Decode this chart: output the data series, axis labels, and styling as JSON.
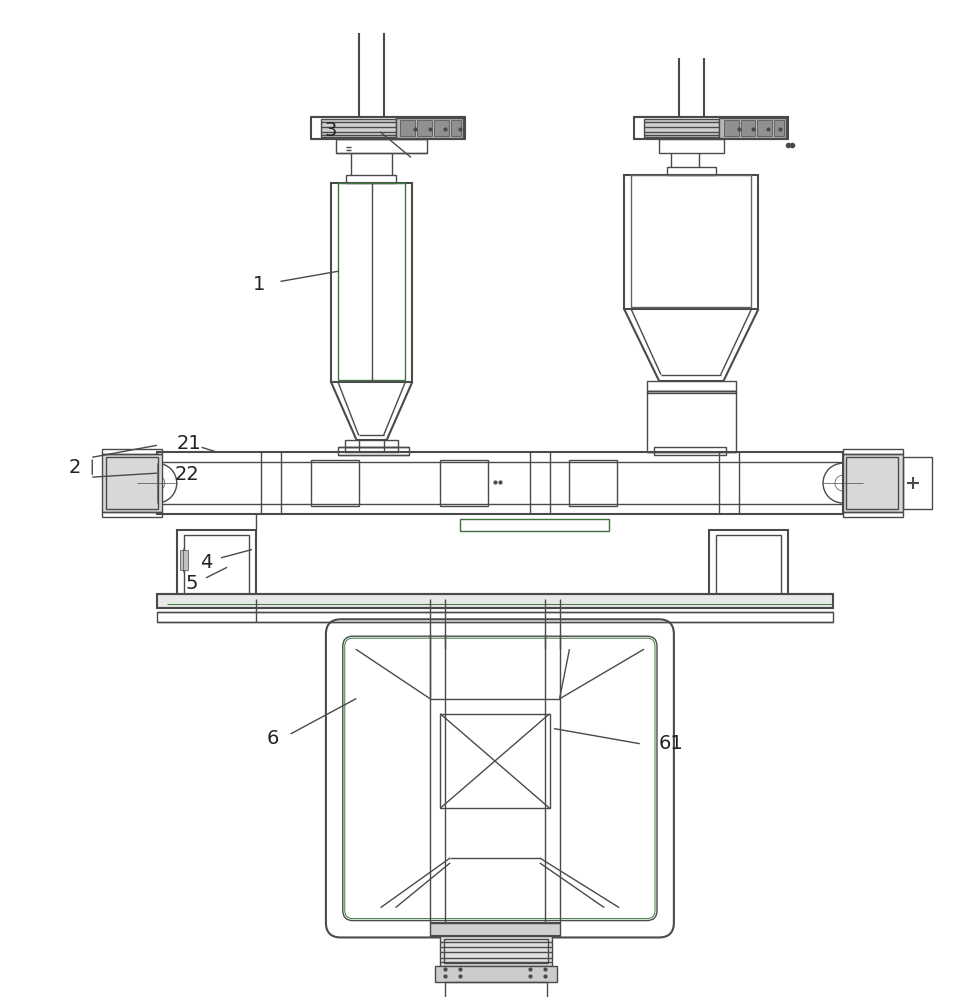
{
  "bg_color": "#ffffff",
  "lc": "#4a4a4a",
  "lc_green": "#3a7a3a",
  "lw": 1.0,
  "tlw": 1.5,
  "figsize": [
    9.64,
    10.0
  ],
  "dpi": 100
}
